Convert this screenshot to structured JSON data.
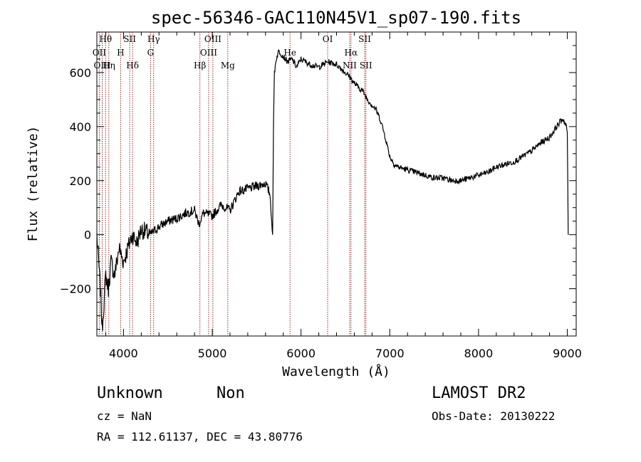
{
  "chart_data": {
    "type": "line",
    "title": "spec-56346-GAC110N45V1_sp07-190.fits",
    "xlabel": "Wavelength (Å)",
    "ylabel": "Flux (relative)",
    "xlim": [
      3700,
      9100
    ],
    "ylim": [
      -375,
      750
    ],
    "xticks": [
      4000,
      5000,
      6000,
      7000,
      8000,
      9000
    ],
    "yticks": [
      -200,
      0,
      200,
      400,
      600
    ],
    "grid": false,
    "line_color": "#000000",
    "marker_color": "#8b1a1a",
    "series": [
      {
        "x": [
          3700,
          3720,
          3740,
          3760,
          3780,
          3800,
          3830,
          3860,
          3900,
          3950,
          4000,
          4050,
          4100,
          4150,
          4200,
          4300,
          4400,
          4500,
          4600,
          4700,
          4800,
          4850,
          4900,
          5000,
          5100,
          5200,
          5300,
          5400,
          5500,
          5600,
          5650,
          5680,
          5690,
          5700,
          5720,
          5750,
          5800,
          5850,
          5900,
          5950,
          6000,
          6100,
          6200,
          6300,
          6400,
          6500,
          6560,
          6600,
          6700,
          6750,
          6800,
          6850,
          6900,
          6950,
          7000,
          7050,
          7100,
          7200,
          7300,
          7400,
          7500,
          7600,
          7700,
          7800,
          7900,
          8000,
          8100,
          8200,
          8300,
          8400,
          8500,
          8600,
          8700,
          8800,
          8900,
          8950,
          8990,
          9000,
          9010
        ],
        "y": [
          0,
          -100,
          -200,
          -350,
          -250,
          -150,
          -200,
          -100,
          -150,
          -50,
          -100,
          -50,
          0,
          -30,
          20,
          0,
          30,
          50,
          60,
          80,
          90,
          40,
          80,
          70,
          110,
          90,
          160,
          170,
          180,
          190,
          150,
          0,
          400,
          600,
          650,
          680,
          660,
          640,
          650,
          620,
          650,
          630,
          620,
          640,
          630,
          600,
          580,
          560,
          530,
          500,
          480,
          460,
          420,
          360,
          290,
          260,
          250,
          240,
          230,
          220,
          210,
          210,
          200,
          200,
          210,
          220,
          230,
          250,
          260,
          270,
          290,
          310,
          340,
          360,
          410,
          430,
          400,
          380,
          0
        ]
      }
    ],
    "emission_lines": [
      {
        "label": "Hθ",
        "wavelength": 3798,
        "row": 0
      },
      {
        "label": "OII",
        "wavelength": 3727,
        "row": 1
      },
      {
        "label": "H",
        "wavelength": 3968,
        "row": 1
      },
      {
        "label": "OIII",
        "wavelength": 3760,
        "row": 2
      },
      {
        "label": "Hη",
        "wavelength": 3835,
        "row": 2
      },
      {
        "label": "SII",
        "wavelength": 4070,
        "row": 0
      },
      {
        "label": "Hδ",
        "wavelength": 4102,
        "row": 2
      },
      {
        "label": "Hγ",
        "wavelength": 4340,
        "row": 0
      },
      {
        "label": "G",
        "wavelength": 4305,
        "row": 1
      },
      {
        "label": "Hβ",
        "wavelength": 4861,
        "row": 2
      },
      {
        "label": "OIII",
        "wavelength": 5007,
        "row": 0
      },
      {
        "label": "OIII",
        "wavelength": 4959,
        "row": 1
      },
      {
        "label": "Mg",
        "wavelength": 5175,
        "row": 2
      },
      {
        "label": "He",
        "wavelength": 5876,
        "row": 1
      },
      {
        "label": "OI",
        "wavelength": 6300,
        "row": 0
      },
      {
        "label": "Hα",
        "wavelength": 6563,
        "row": 1
      },
      {
        "label": "NII",
        "wavelength": 6548,
        "row": 2
      },
      {
        "label": "SII",
        "wavelength": 6717,
        "row": 0
      },
      {
        "label": "SII",
        "wavelength": 6731,
        "row": 2
      }
    ]
  },
  "info": {
    "class_text": "Unknown",
    "subclass_text": "Non",
    "survey": "LAMOST DR2",
    "cz": "cz = NaN",
    "obs_date": "Obs-Date: 20130222",
    "coords": "RA = 112.61137, DEC =  43.80776"
  }
}
